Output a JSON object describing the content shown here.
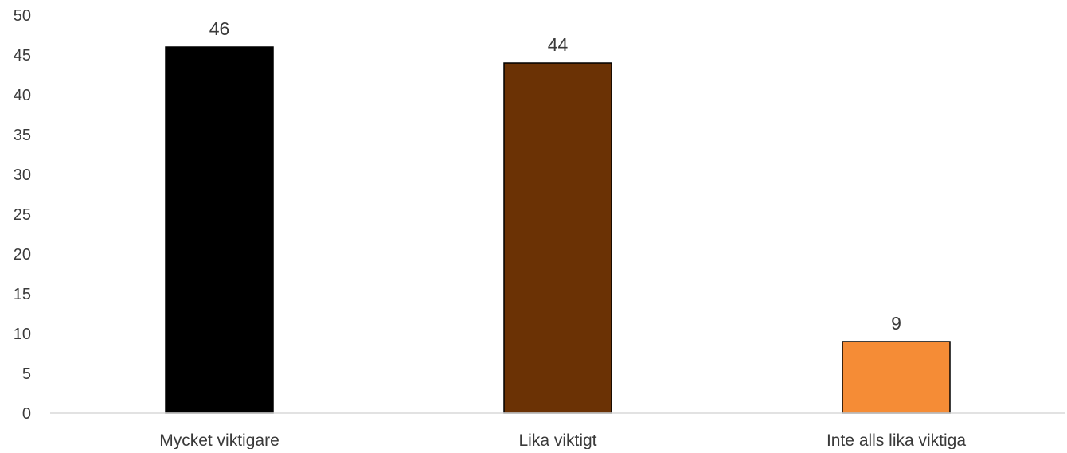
{
  "chart_data": {
    "type": "bar",
    "title": "",
    "xlabel": "",
    "ylabel": "",
    "categories": [
      "Mycket viktigare",
      "Lika viktigt",
      "Inte alls lika viktiga"
    ],
    "values": [
      46,
      44,
      9
    ],
    "value_labels": [
      "46",
      "44",
      "9"
    ],
    "bar_colors": [
      "#000000",
      "#6b3205",
      "#f58c36"
    ],
    "ylim": [
      0,
      50
    ],
    "yticks": [
      0,
      5,
      10,
      15,
      20,
      25,
      30,
      35,
      40,
      45,
      50
    ],
    "grid": false,
    "legend": "none"
  }
}
